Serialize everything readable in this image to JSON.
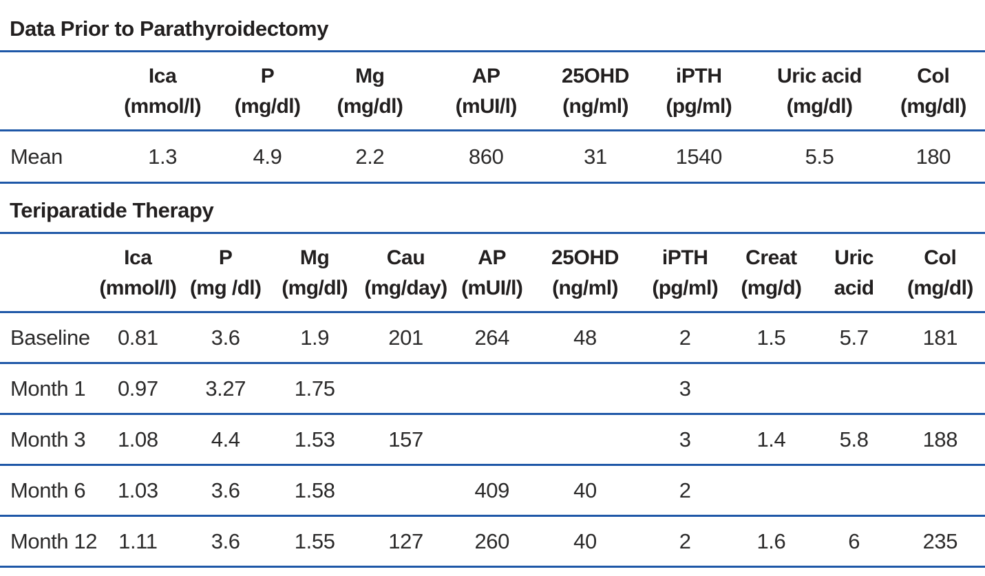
{
  "page": {
    "background": "#ffffff",
    "rule_color": "#1e57a7",
    "text_color": "#221f1f"
  },
  "tables": [
    {
      "id": "prior-to-parathyroidectomy",
      "title": "Data Prior to Parathyroidectomy",
      "columns": [
        {
          "name": "",
          "unit": "",
          "width": 11.0
        },
        {
          "name": "Ica",
          "unit": "(mmol/l)",
          "width": 11.0
        },
        {
          "name": "P",
          "unit": "(mg/dl)",
          "width": 10.3
        },
        {
          "name": "Mg",
          "unit": "(mg/dl)",
          "width": 10.5
        },
        {
          "name": "AP",
          "unit": "(mUI/l)",
          "width": 13.1
        },
        {
          "name": "25OHD",
          "unit": "(ng/ml)",
          "width": 9.1
        },
        {
          "name": "iPTH",
          "unit": "(pg/ml)",
          "width": 11.9
        },
        {
          "name": "Uric acid",
          "unit": "(mg/dl)",
          "width": 12.6
        },
        {
          "name": "Col",
          "unit": "(mg/dl)",
          "width": 10.5
        }
      ],
      "rows": [
        {
          "label": "Mean",
          "values": [
            "1.3",
            "4.9",
            "2.2",
            "860",
            "31",
            "1540",
            "5.5",
            "180"
          ]
        }
      ]
    },
    {
      "id": "teriparatide-therapy",
      "title": "Teriparatide Therapy",
      "columns": [
        {
          "name": "",
          "unit": "",
          "width": 9.8
        },
        {
          "name": "Ica",
          "unit": "(mmol/l)",
          "width": 8.4
        },
        {
          "name": "P",
          "unit": "(mg /dl)",
          "width": 9.4
        },
        {
          "name": "Mg",
          "unit": "(mg/dl)",
          "width": 8.7
        },
        {
          "name": "Cau",
          "unit": "(mg/day)",
          "width": 9.8
        },
        {
          "name": "AP",
          "unit": "(mUI/l)",
          "width": 7.7
        },
        {
          "name": "25OHD",
          "unit": "(ng/ml)",
          "width": 11.2
        },
        {
          "name": "iPTH",
          "unit": "(pg/ml)",
          "width": 9.1
        },
        {
          "name": "Creat",
          "unit": "(mg/d)",
          "width": 8.4
        },
        {
          "name": "Uric",
          "unit": "acid",
          "width": 8.4
        },
        {
          "name": "Col",
          "unit": "(mg/dl)",
          "width": 9.1
        }
      ],
      "rows": [
        {
          "label": "Baseline",
          "values": [
            "0.81",
            "3.6",
            "1.9",
            "201",
            "264",
            "48",
            "2",
            "1.5",
            "5.7",
            "181"
          ]
        },
        {
          "label": "Month 1",
          "values": [
            "0.97",
            "3.27",
            "1.75",
            "",
            "",
            "",
            "3",
            "",
            "",
            ""
          ]
        },
        {
          "label": "Month 3",
          "values": [
            "1.08",
            "4.4",
            "1.53",
            "157",
            "",
            "",
            "3",
            "1.4",
            "5.8",
            "188"
          ]
        },
        {
          "label": "Month 6",
          "values": [
            "1.03",
            "3.6",
            "1.58",
            "",
            "409",
            "40",
            "2",
            "",
            "",
            ""
          ]
        },
        {
          "label": "Month 12",
          "values": [
            "1.11",
            "3.6",
            "1.55",
            "127",
            "260",
            "40",
            "2",
            "1.6",
            "6",
            "235"
          ]
        }
      ]
    }
  ]
}
